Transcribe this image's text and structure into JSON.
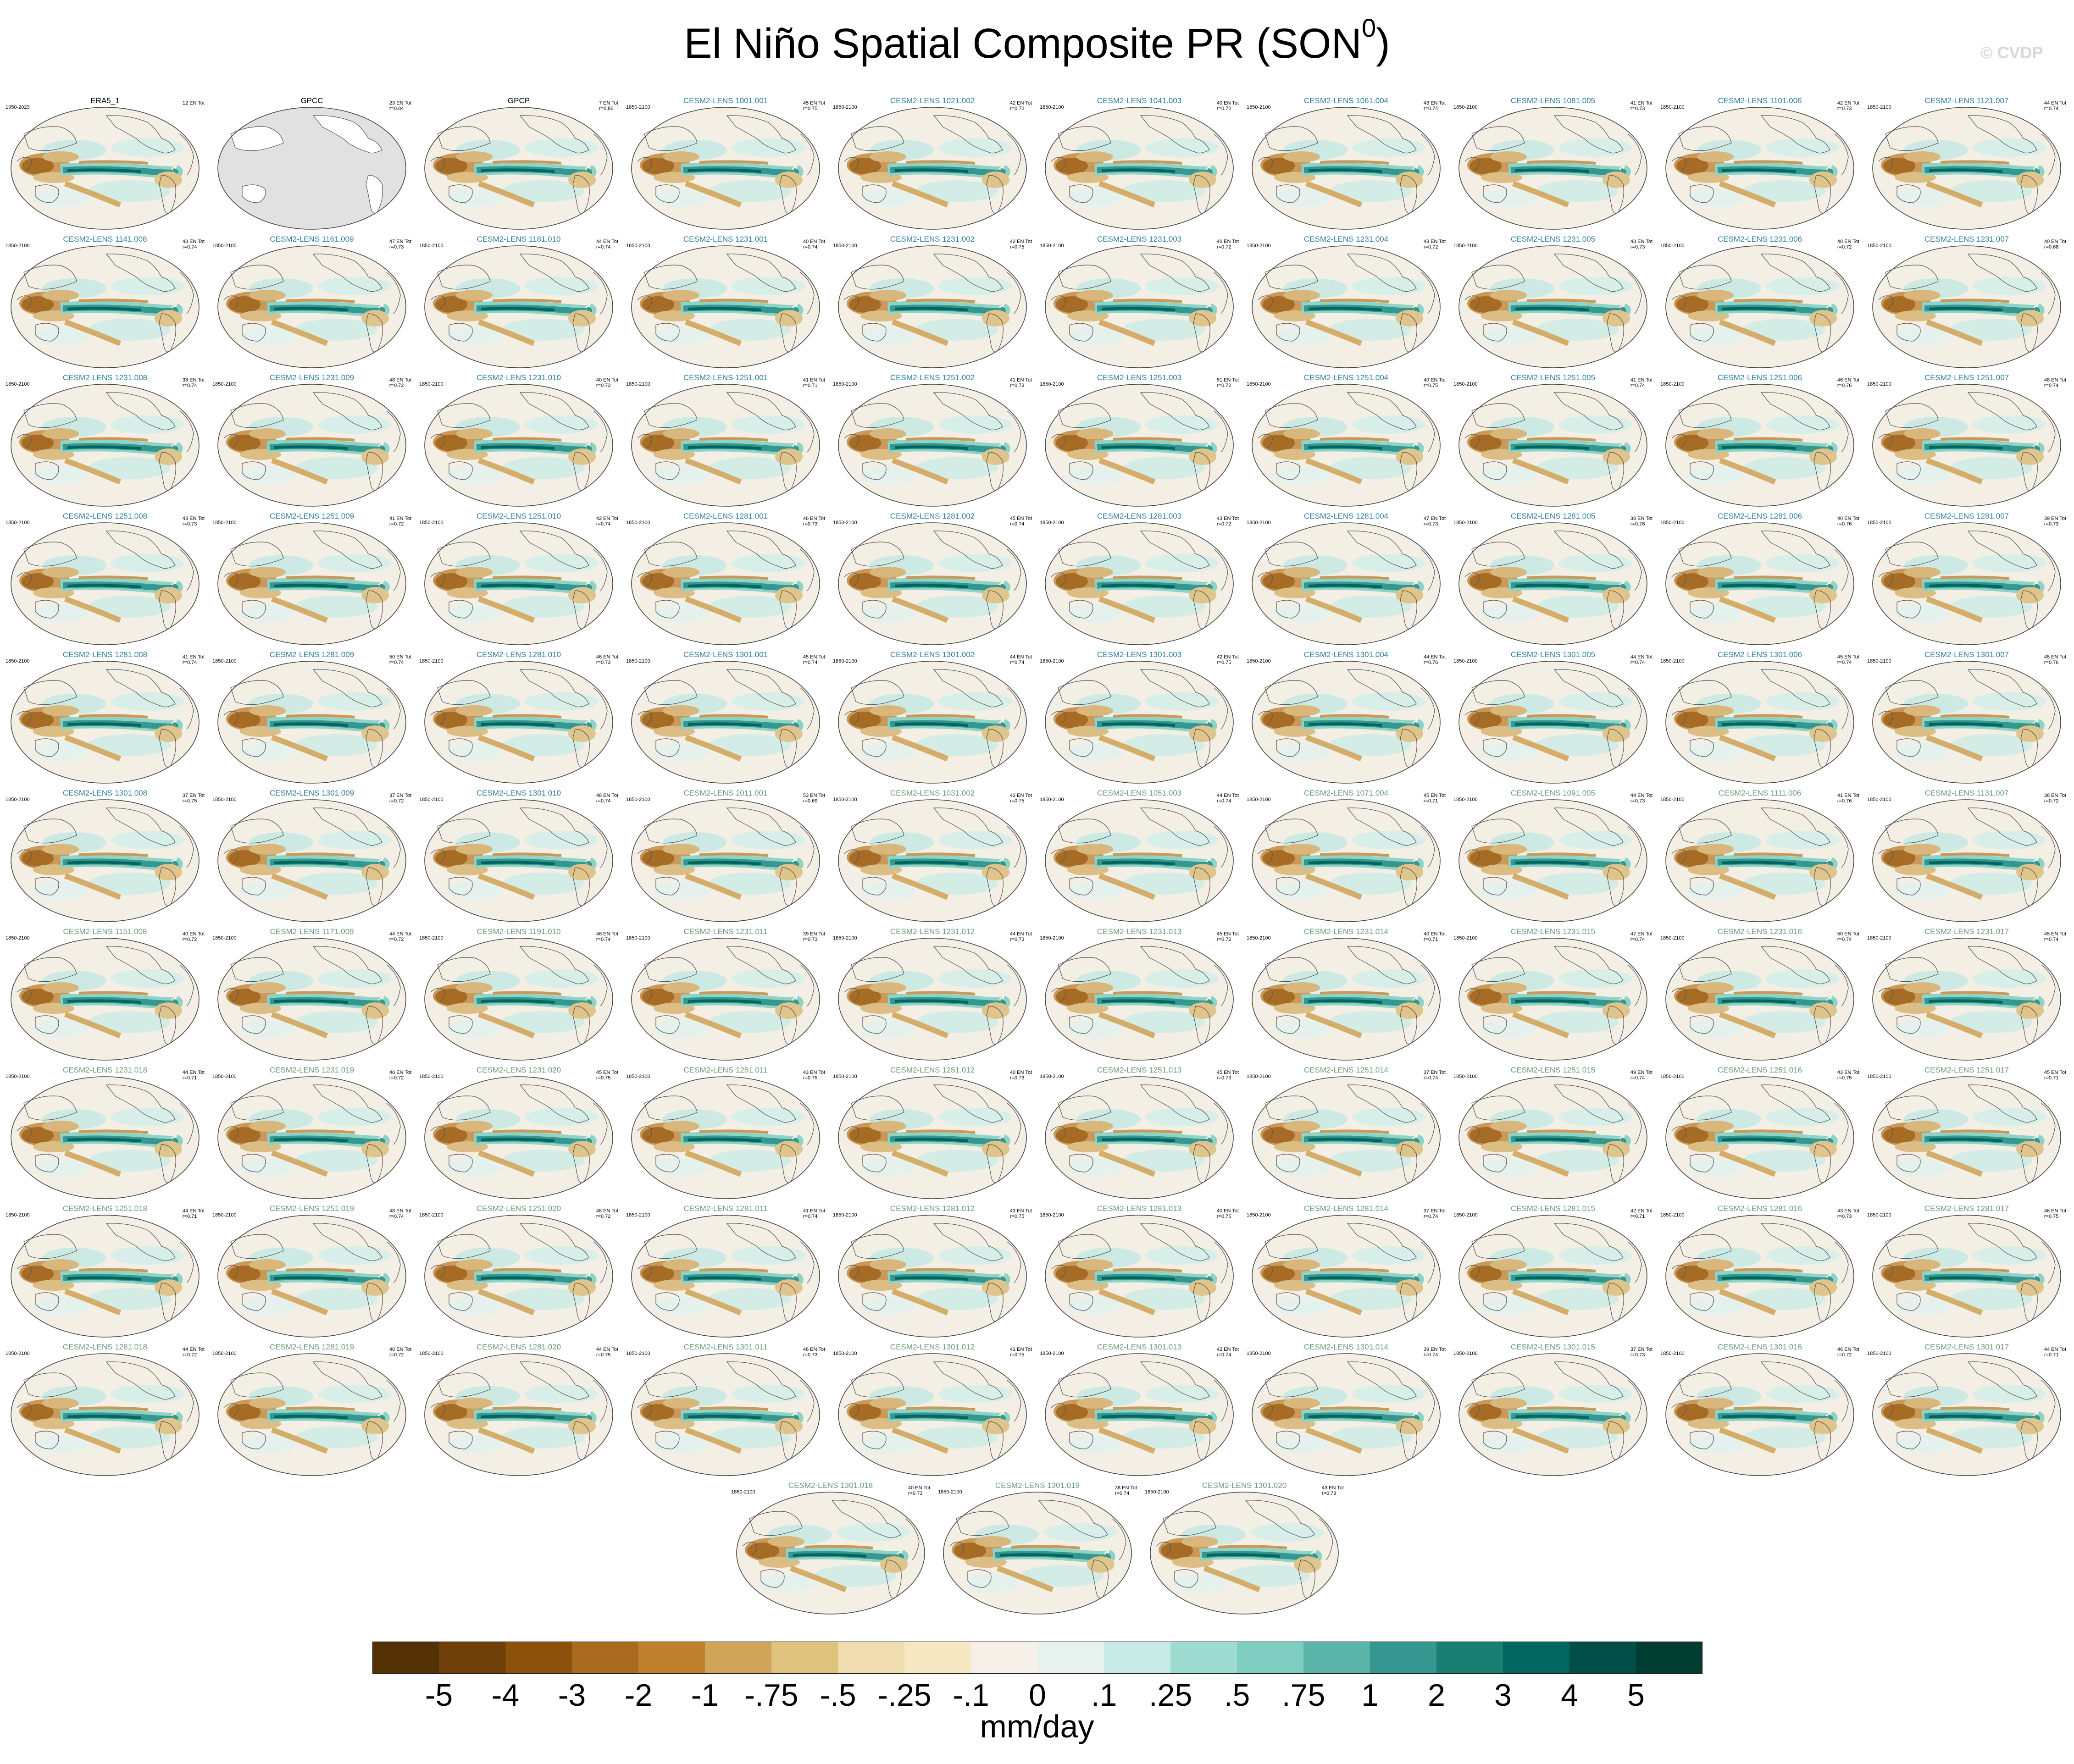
{
  "figure": {
    "title": "El Niño Spatial Composite PR (SON",
    "title_sup": "0",
    "title_tail": ")",
    "watermark": "© CVDP",
    "units": "mm/day"
  },
  "colorbar": {
    "colors": [
      "#543005",
      "#6e3f09",
      "#8c510a",
      "#a86a1f",
      "#bf812d",
      "#d0a55a",
      "#dfc27d",
      "#efdcaf",
      "#f6e8c3",
      "#f5f1e8",
      "#e7f2ef",
      "#c7eae5",
      "#9edcd1",
      "#80cdc1",
      "#5ab4a8",
      "#35978f",
      "#1b7e72",
      "#01665e",
      "#004e45",
      "#003c30"
    ],
    "labels": [
      "-5",
      "-4",
      "-3",
      "-2",
      "-1",
      "-.75",
      "-.5",
      "-.25",
      "-.1",
      "0",
      ".1",
      ".25",
      ".5",
      ".75",
      "1",
      "2",
      "3",
      "4",
      "5"
    ]
  },
  "colors": {
    "observed_title": "#000000",
    "lens_blue_title": "#2f7fa0",
    "lens_green_title": "#6a9a7a"
  },
  "panels": [
    {
      "title": "ERA5_1",
      "period": "1950-2023",
      "count": "12 EN Tot",
      "r": "",
      "style": "obs",
      "landmask": false
    },
    {
      "title": "GPCC",
      "period": "",
      "count": "23 EN Tot",
      "r": "r=0.84",
      "style": "obs",
      "landmask": true
    },
    {
      "title": "GPCP",
      "period": "",
      "count": "7 EN Tot",
      "r": "r=0.86",
      "style": "obs",
      "landmask": false
    },
    {
      "title": "CESM2-LENS 1001.001",
      "period": "1850-2100",
      "count": "45 EN Tot",
      "r": "r=0.75",
      "style": "blue"
    },
    {
      "title": "CESM2-LENS 1021.002",
      "period": "1850-2100",
      "count": "42 EN Tot",
      "r": "r=0.72",
      "style": "blue"
    },
    {
      "title": "CESM2-LENS 1041.003",
      "period": "1850-2100",
      "count": "40 EN Tot",
      "r": "r=0.72",
      "style": "blue"
    },
    {
      "title": "CESM2-LENS 1061.004",
      "period": "1850-2100",
      "count": "43 EN Tot",
      "r": "r=0.74",
      "style": "blue"
    },
    {
      "title": "CESM2-LENS 1081.005",
      "period": "1850-2100",
      "count": "41 EN Tot",
      "r": "r=0.73",
      "style": "blue"
    },
    {
      "title": "CESM2-LENS 1101.006",
      "period": "1850-2100",
      "count": "42 EN Tot",
      "r": "r=0.73",
      "style": "blue"
    },
    {
      "title": "CESM2-LENS 1121.007",
      "period": "1850-2100",
      "count": "44 EN Tot",
      "r": "r=0.74",
      "style": "blue"
    },
    {
      "title": "CESM2-LENS 1141.008",
      "period": "1850-2100",
      "count": "43 EN Tot",
      "r": "r=0.74",
      "style": "blue"
    },
    {
      "title": "CESM2-LENS 1161.009",
      "period": "1850-2100",
      "count": "47 EN Tot",
      "r": "r=0.73",
      "style": "blue"
    },
    {
      "title": "CESM2-LENS 1181.010",
      "period": "1850-2100",
      "count": "44 EN Tot",
      "r": "r=0.74",
      "style": "blue"
    },
    {
      "title": "CESM2-LENS 1231.001",
      "period": "1850-2100",
      "count": "40 EN Tot",
      "r": "r=0.74",
      "style": "blue"
    },
    {
      "title": "CESM2-LENS 1231.002",
      "period": "1850-2100",
      "count": "42 EN Tot",
      "r": "r=0.75",
      "style": "blue"
    },
    {
      "title": "CESM2-LENS 1231.003",
      "period": "1850-2100",
      "count": "40 EN Tot",
      "r": "r=0.72",
      "style": "blue"
    },
    {
      "title": "CESM2-LENS 1231.004",
      "period": "1850-2100",
      "count": "43 EN Tot",
      "r": "r=0.72",
      "style": "blue"
    },
    {
      "title": "CESM2-LENS 1231.005",
      "period": "1850-2100",
      "count": "43 EN Tot",
      "r": "r=0.73",
      "style": "blue"
    },
    {
      "title": "CESM2-LENS 1231.006",
      "period": "1850-2100",
      "count": "48 EN Tot",
      "r": "r=0.72",
      "style": "blue"
    },
    {
      "title": "CESM2-LENS 1231.007",
      "period": "1850-2100",
      "count": "40 EN Tot",
      "r": "r=0.68",
      "style": "blue"
    },
    {
      "title": "CESM2-LENS 1231.008",
      "period": "1850-2100",
      "count": "38 EN Tot",
      "r": "r=0.74",
      "style": "blue"
    },
    {
      "title": "CESM2-LENS 1231.009",
      "period": "1850-2100",
      "count": "48 EN Tot",
      "r": "r=0.72",
      "style": "blue"
    },
    {
      "title": "CESM2-LENS 1231.010",
      "period": "1850-2100",
      "count": "40 EN Tot",
      "r": "r=0.73",
      "style": "blue"
    },
    {
      "title": "CESM2-LENS 1251.001",
      "period": "1850-2100",
      "count": "41 EN Tot",
      "r": "r=0.71",
      "style": "blue"
    },
    {
      "title": "CESM2-LENS 1251.002",
      "period": "1850-2100",
      "count": "41 EN Tot",
      "r": "r=0.73",
      "style": "blue"
    },
    {
      "title": "CESM2-LENS 1251.003",
      "period": "1850-2100",
      "count": "51 EN Tot",
      "r": "r=0.72",
      "style": "blue"
    },
    {
      "title": "CESM2-LENS 1251.004",
      "period": "1850-2100",
      "count": "40 EN Tot",
      "r": "r=0.75",
      "style": "blue"
    },
    {
      "title": "CESM2-LENS 1251.005",
      "period": "1850-2100",
      "count": "41 EN Tot",
      "r": "r=0.74",
      "style": "blue"
    },
    {
      "title": "CESM2-LENS 1251.006",
      "period": "1850-2100",
      "count": "46 EN Tot",
      "r": "r=0.76",
      "style": "blue"
    },
    {
      "title": "CESM2-LENS 1251.007",
      "period": "1850-2100",
      "count": "48 EN Tot",
      "r": "r=0.74",
      "style": "blue"
    },
    {
      "title": "CESM2-LENS 1251.008",
      "period": "1850-2100",
      "count": "43 EN Tot",
      "r": "r=0.73",
      "style": "blue"
    },
    {
      "title": "CESM2-LENS 1251.009",
      "period": "1850-2100",
      "count": "41 EN Tot",
      "r": "r=0.72",
      "style": "blue"
    },
    {
      "title": "CESM2-LENS 1251.010",
      "period": "1850-2100",
      "count": "42 EN Tot",
      "r": "r=0.74",
      "style": "blue"
    },
    {
      "title": "CESM2-LENS 1281.001",
      "period": "1850-2100",
      "count": "46 EN Tot",
      "r": "r=0.73",
      "style": "blue"
    },
    {
      "title": "CESM2-LENS 1281.002",
      "period": "1850-2100",
      "count": "45 EN Tot",
      "r": "r=0.74",
      "style": "blue"
    },
    {
      "title": "CESM2-LENS 1281.003",
      "period": "1850-2100",
      "count": "43 EN Tot",
      "r": "r=0.72",
      "style": "blue"
    },
    {
      "title": "CESM2-LENS 1281.004",
      "period": "1850-2100",
      "count": "47 EN Tot",
      "r": "r=0.73",
      "style": "blue"
    },
    {
      "title": "CESM2-LENS 1281.005",
      "period": "1850-2100",
      "count": "38 EN Tot",
      "r": "r=0.76",
      "style": "blue"
    },
    {
      "title": "CESM2-LENS 1281.006",
      "period": "1850-2100",
      "count": "40 EN Tot",
      "r": "r=0.76",
      "style": "blue"
    },
    {
      "title": "CESM2-LENS 1281.007",
      "period": "1850-2100",
      "count": "39 EN Tot",
      "r": "r=0.73",
      "style": "blue"
    },
    {
      "title": "CESM2-LENS 1281.008",
      "period": "1850-2100",
      "count": "41 EN Tot",
      "r": "r=0.74",
      "style": "blue"
    },
    {
      "title": "CESM2-LENS 1281.009",
      "period": "1850-2100",
      "count": "50 EN Tot",
      "r": "r=0.74",
      "style": "blue"
    },
    {
      "title": "CESM2-LENS 1281.010",
      "period": "1850-2100",
      "count": "46 EN Tot",
      "r": "r=0.73",
      "style": "blue"
    },
    {
      "title": "CESM2-LENS 1301.001",
      "period": "1850-2100",
      "count": "45 EN Tot",
      "r": "r=0.74",
      "style": "blue"
    },
    {
      "title": "CESM2-LENS 1301.002",
      "period": "1850-2100",
      "count": "44 EN Tot",
      "r": "r=0.74",
      "style": "blue"
    },
    {
      "title": "CESM2-LENS 1301.003",
      "period": "1850-2100",
      "count": "42 EN Tot",
      "r": "r=0.75",
      "style": "blue"
    },
    {
      "title": "CESM2-LENS 1301.004",
      "period": "1850-2100",
      "count": "44 EN Tot",
      "r": "r=0.76",
      "style": "blue"
    },
    {
      "title": "CESM2-LENS 1301.005",
      "period": "1850-2100",
      "count": "44 EN Tot",
      "r": "r=0.74",
      "style": "blue"
    },
    {
      "title": "CESM2-LENS 1301.006",
      "period": "1850-2100",
      "count": "45 EN Tot",
      "r": "r=0.74",
      "style": "blue"
    },
    {
      "title": "CESM2-LENS 1301.007",
      "period": "1850-2100",
      "count": "45 EN Tot",
      "r": "r=0.76",
      "style": "blue"
    },
    {
      "title": "CESM2-LENS 1301.008",
      "period": "1850-2100",
      "count": "37 EN Tot",
      "r": "r=0.75",
      "style": "blue"
    },
    {
      "title": "CESM2-LENS 1301.009",
      "period": "1850-2100",
      "count": "37 EN Tot",
      "r": "r=0.72",
      "style": "blue"
    },
    {
      "title": "CESM2-LENS 1301.010",
      "period": "1850-2100",
      "count": "48 EN Tot",
      "r": "r=0.74",
      "style": "blue"
    },
    {
      "title": "CESM2-LENS 1011.001",
      "period": "1850-2100",
      "count": "53 EN Tot",
      "r": "r=0.69",
      "style": "green"
    },
    {
      "title": "CESM2-LENS 1031.002",
      "period": "1850-2100",
      "count": "42 EN Tot",
      "r": "r=0.75",
      "style": "green"
    },
    {
      "title": "CESM2-LENS 1051.003",
      "period": "1850-2100",
      "count": "44 EN Tot",
      "r": "r=0.74",
      "style": "green"
    },
    {
      "title": "CESM2-LENS 1071.004",
      "period": "1850-2100",
      "count": "45 EN Tot",
      "r": "r=0.71",
      "style": "green"
    },
    {
      "title": "CESM2-LENS 1091.005",
      "period": "1850-2100",
      "count": "44 EN Tot",
      "r": "r=0.73",
      "style": "green"
    },
    {
      "title": "CESM2-LENS 1111.006",
      "period": "1850-2100",
      "count": "41 EN Tot",
      "r": "r=0.76",
      "style": "green"
    },
    {
      "title": "CESM2-LENS 1131.007",
      "period": "1850-2100",
      "count": "38 EN Tot",
      "r": "r=0.72",
      "style": "green"
    },
    {
      "title": "CESM2-LENS 1151.008",
      "period": "1850-2100",
      "count": "40 EN Tot",
      "r": "r=0.72",
      "style": "green"
    },
    {
      "title": "CESM2-LENS 1171.009",
      "period": "1850-2100",
      "count": "44 EN Tot",
      "r": "r=0.72",
      "style": "green"
    },
    {
      "title": "CESM2-LENS 1191.010",
      "period": "1850-2100",
      "count": "46 EN Tot",
      "r": "r=0.74",
      "style": "green"
    },
    {
      "title": "CESM2-LENS 1231.011",
      "period": "1850-2100",
      "count": "39 EN Tot",
      "r": "r=0.73",
      "style": "green"
    },
    {
      "title": "CESM2-LENS 1231.012",
      "period": "1850-2100",
      "count": "44 EN Tot",
      "r": "r=0.73",
      "style": "green"
    },
    {
      "title": "CESM2-LENS 1231.013",
      "period": "1850-2100",
      "count": "45 EN Tot",
      "r": "r=0.72",
      "style": "green"
    },
    {
      "title": "CESM2-LENS 1231.014",
      "period": "1850-2100",
      "count": "40 EN Tot",
      "r": "r=0.71",
      "style": "green"
    },
    {
      "title": "CESM2-LENS 1231.015",
      "period": "1850-2100",
      "count": "47 EN Tot",
      "r": "r=0.74",
      "style": "green"
    },
    {
      "title": "CESM2-LENS 1231.016",
      "period": "1850-2100",
      "count": "50 EN Tot",
      "r": "r=0.74",
      "style": "green"
    },
    {
      "title": "CESM2-LENS 1231.017",
      "period": "1850-2100",
      "count": "45 EN Tot",
      "r": "r=0.74",
      "style": "green"
    },
    {
      "title": "CESM2-LENS 1231.018",
      "period": "1850-2100",
      "count": "44 EN Tot",
      "r": "r=0.71",
      "style": "green"
    },
    {
      "title": "CESM2-LENS 1231.019",
      "period": "1850-2100",
      "count": "40 EN Tot",
      "r": "r=0.72",
      "style": "green"
    },
    {
      "title": "CESM2-LENS 1231.020",
      "period": "1850-2100",
      "count": "45 EN Tot",
      "r": "r=0.75",
      "style": "green"
    },
    {
      "title": "CESM2-LENS 1251.011",
      "period": "1850-2100",
      "count": "43 EN Tot",
      "r": "r=0.75",
      "style": "green"
    },
    {
      "title": "CESM2-LENS 1251.012",
      "period": "1850-2100",
      "count": "40 EN Tot",
      "r": "r=0.73",
      "style": "green"
    },
    {
      "title": "CESM2-LENS 1251.013",
      "period": "1850-2100",
      "count": "45 EN Tot",
      "r": "r=0.73",
      "style": "green"
    },
    {
      "title": "CESM2-LENS 1251.014",
      "period": "1850-2100",
      "count": "37 EN Tot",
      "r": "r=0.74",
      "style": "green"
    },
    {
      "title": "CESM2-LENS 1251.015",
      "period": "1850-2100",
      "count": "49 EN Tot",
      "r": "r=0.74",
      "style": "green"
    },
    {
      "title": "CESM2-LENS 1251.016",
      "period": "1850-2100",
      "count": "43 EN Tot",
      "r": "r=0.75",
      "style": "green"
    },
    {
      "title": "CESM2-LENS 1251.017",
      "period": "1850-2100",
      "count": "45 EN Tot",
      "r": "r=0.71",
      "style": "green"
    },
    {
      "title": "CESM2-LENS 1251.018",
      "period": "1850-2100",
      "count": "44 EN Tot",
      "r": "r=0.71",
      "style": "green"
    },
    {
      "title": "CESM2-LENS 1251.019",
      "period": "1850-2100",
      "count": "48 EN Tot",
      "r": "r=0.74",
      "style": "green"
    },
    {
      "title": "CESM2-LENS 1251.020",
      "period": "1850-2100",
      "count": "48 EN Tot",
      "r": "r=0.72",
      "style": "green"
    },
    {
      "title": "CESM2-LENS 1281.011",
      "period": "1850-2100",
      "count": "41 EN Tot",
      "r": "r=0.74",
      "style": "green"
    },
    {
      "title": "CESM2-LENS 1281.012",
      "period": "1850-2100",
      "count": "43 EN Tot",
      "r": "r=0.75",
      "style": "green"
    },
    {
      "title": "CESM2-LENS 1281.013",
      "period": "1850-2100",
      "count": "40 EN Tot",
      "r": "r=0.75",
      "style": "green"
    },
    {
      "title": "CESM2-LENS 1281.014",
      "period": "1850-2100",
      "count": "37 EN Tot",
      "r": "r=0.74",
      "style": "green"
    },
    {
      "title": "CESM2-LENS 1281.015",
      "period": "1850-2100",
      "count": "42 EN Tot",
      "r": "r=0.71",
      "style": "green"
    },
    {
      "title": "CESM2-LENS 1281.016",
      "period": "1850-2100",
      "count": "43 EN Tot",
      "r": "r=0.73",
      "style": "green"
    },
    {
      "title": "CESM2-LENS 1281.017",
      "period": "1850-2100",
      "count": "46 EN Tot",
      "r": "r=0.75",
      "style": "green"
    },
    {
      "title": "CESM2-LENS 1281.018",
      "period": "1850-2100",
      "count": "44 EN Tot",
      "r": "r=0.72",
      "style": "green"
    },
    {
      "title": "CESM2-LENS 1281.019",
      "period": "1850-2100",
      "count": "40 EN Tot",
      "r": "r=0.72",
      "style": "green"
    },
    {
      "title": "CESM2-LENS 1281.020",
      "period": "1850-2100",
      "count": "44 EN Tot",
      "r": "r=0.75",
      "style": "green"
    },
    {
      "title": "CESM2-LENS 1301.011",
      "period": "1850-2100",
      "count": "46 EN Tot",
      "r": "r=0.73",
      "style": "green"
    },
    {
      "title": "CESM2-LENS 1301.012",
      "period": "1850-2100",
      "count": "41 EN Tot",
      "r": "r=0.75",
      "style": "green"
    },
    {
      "title": "CESM2-LENS 1301.013",
      "period": "1850-2100",
      "count": "42 EN Tot",
      "r": "r=0.74",
      "style": "green"
    },
    {
      "title": "CESM2-LENS 1301.014",
      "period": "1850-2100",
      "count": "39 EN Tot",
      "r": "r=0.74",
      "style": "green"
    },
    {
      "title": "CESM2-LENS 1301.015",
      "period": "1850-2100",
      "count": "37 EN Tot",
      "r": "r=0.73",
      "style": "green"
    },
    {
      "title": "CESM2-LENS 1301.016",
      "period": "1850-2100",
      "count": "46 EN Tot",
      "r": "r=0.72",
      "style": "green"
    },
    {
      "title": "CESM2-LENS 1301.017",
      "period": "1850-2100",
      "count": "44 EN Tot",
      "r": "r=0.71",
      "style": "green"
    },
    {
      "title": "CESM2-LENS 1301.018",
      "period": "1850-2100",
      "count": "40 EN Tot",
      "r": "r=0.73",
      "style": "green"
    },
    {
      "title": "CESM2-LENS 1301.019",
      "period": "1850-2100",
      "count": "38 EN Tot",
      "r": "r=0.74",
      "style": "green"
    },
    {
      "title": "CESM2-LENS 1301.020",
      "period": "1850-2100",
      "count": "43 EN Tot",
      "r": "r=0.73",
      "style": "green"
    }
  ]
}
